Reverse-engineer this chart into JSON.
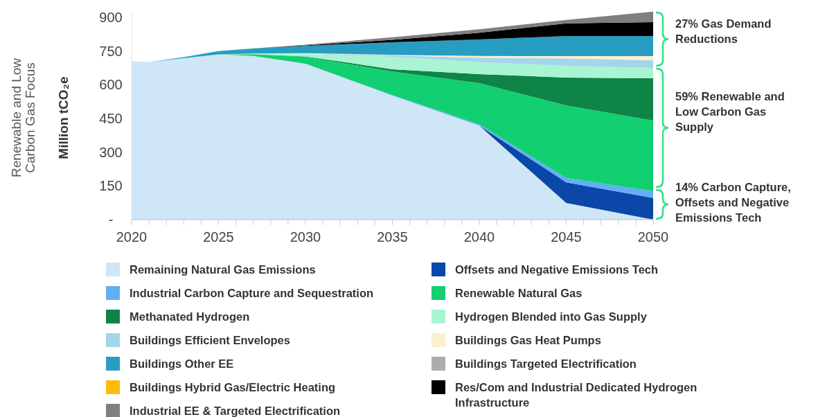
{
  "chart_data": {
    "type": "area",
    "stacked": true,
    "title": "Renewable and Low Carbon Gas Focus",
    "ylabel": "Million tCO₂e",
    "x": [
      2020,
      2021,
      2023,
      2025,
      2027,
      2030,
      2035,
      2040,
      2045,
      2050
    ],
    "xlim": [
      2020,
      2050
    ],
    "xticks": [
      2020,
      {
        "value": 2021,
        "label": null
      },
      {
        "value": 2022,
        "label": null
      },
      {
        "value": 2023,
        "label": null
      },
      {
        "value": 2024,
        "label": null
      },
      2025,
      {
        "value": 2026,
        "label": null
      },
      {
        "value": 2027,
        "label": null
      },
      {
        "value": 2028,
        "label": null
      },
      {
        "value": 2029,
        "label": null
      },
      2030,
      {
        "value": 2031,
        "label": null
      },
      {
        "value": 2032,
        "label": null
      },
      {
        "value": 2033,
        "label": null
      },
      {
        "value": 2034,
        "label": null
      },
      2035,
      {
        "value": 2036,
        "label": null
      },
      {
        "value": 2037,
        "label": null
      },
      {
        "value": 2038,
        "label": null
      },
      {
        "value": 2039,
        "label": null
      },
      2040,
      {
        "value": 2041,
        "label": null
      },
      {
        "value": 2042,
        "label": null
      },
      {
        "value": 2043,
        "label": null
      },
      {
        "value": 2044,
        "label": null
      },
      2045,
      {
        "value": 2046,
        "label": null
      },
      {
        "value": 2047,
        "label": null
      },
      {
        "value": 2048,
        "label": null
      },
      {
        "value": 2049,
        "label": null
      },
      2050
    ],
    "ylim": [
      0,
      930
    ],
    "yticks": [
      {
        "value": 0,
        "label": "-"
      },
      150,
      300,
      450,
      600,
      750,
      900
    ],
    "legend": "bottom",
    "series": [
      {
        "name": "Remaining Natural Gas Emissions",
        "color": "#cfe6f7",
        "values": [
          705,
          700,
          718,
          735,
          728,
          693,
          552,
          418,
          74,
          0
        ]
      },
      {
        "name": "Offsets and Negative Emissions Tech",
        "color": "#0a47a8",
        "values": [
          null,
          null,
          null,
          null,
          null,
          null,
          null,
          0,
          92,
          96
        ]
      },
      {
        "name": "Industrial Carbon Capture and Sequestration",
        "color": "#63aef5",
        "values": [
          null,
          null,
          null,
          null,
          null,
          0,
          2,
          6,
          19,
          30
        ]
      },
      {
        "name": "Renewable Natural Gas",
        "color": "#12cf72",
        "values": [
          null,
          null,
          null,
          0,
          8,
          31,
          105,
          183,
          323,
          315
        ]
      },
      {
        "name": "Methanated Hydrogen",
        "color": "#0e8446",
        "values": [
          null,
          null,
          null,
          null,
          0,
          2,
          10,
          40,
          124,
          188
        ]
      },
      {
        "name": "Hydrogen Blended into Gas Supply",
        "color": "#a9f5d3",
        "values": [
          null,
          null,
          null,
          0,
          3,
          11,
          55,
          53,
          52,
          46
        ]
      },
      {
        "name": "Buildings Efficient Envelopes",
        "color": "#a3d6ea",
        "values": [
          null,
          null,
          null,
          null,
          0,
          2,
          6,
          20,
          33,
          34
        ]
      },
      {
        "name": "Buildings Gas Heat Pumps",
        "color": "#fcefcf",
        "values": [
          null,
          null,
          null,
          null,
          0,
          1,
          3,
          8,
          10,
          18
        ]
      },
      {
        "name": "Buildings Other EE",
        "color": "#279dc2",
        "values": [
          null,
          0,
          5,
          15,
          22,
          33,
          56,
          73,
          90,
          90
        ]
      },
      {
        "name": "Buildings Targeted Electrification",
        "color": "#acacac",
        "values": [
          null,
          null,
          null,
          null,
          null,
          null,
          null,
          null,
          null,
          null
        ]
      },
      {
        "name": "Buildings Hybrid Gas/Electric Heating",
        "color": "#fbbd0c",
        "values": [
          null,
          null,
          null,
          null,
          null,
          null,
          null,
          null,
          null,
          null
        ]
      },
      {
        "name": "Res/Com and Industrial Dedicated Hydrogen Infrastructure",
        "color": "#000000",
        "values": [
          null,
          null,
          null,
          null,
          0,
          2,
          11,
          30,
          56,
          61
        ]
      },
      {
        "name": "Industrial EE & Targeted Electrification",
        "color": "#7f7f7f",
        "values": [
          null,
          null,
          null,
          null,
          0,
          3,
          11,
          16,
          15,
          47
        ]
      }
    ],
    "annotations": [
      "27% Gas Demand Reductions",
      "59% Renewable and Low Carbon Gas Supply",
      "14% Carbon Capture, Offsets and Negative Emissions Tech"
    ]
  }
}
